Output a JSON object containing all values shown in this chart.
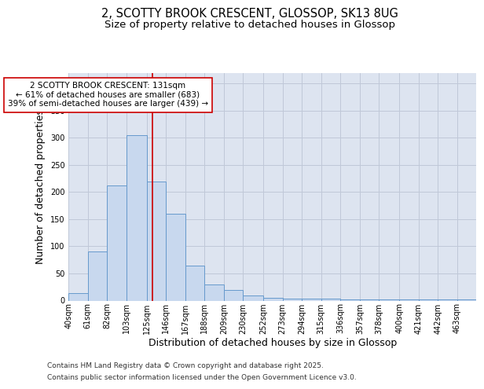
{
  "title_line1": "2, SCOTTY BROOK CRESCENT, GLOSSOP, SK13 8UG",
  "title_line2": "Size of property relative to detached houses in Glossop",
  "xlabel": "Distribution of detached houses by size in Glossop",
  "ylabel": "Number of detached properties",
  "bin_labels": [
    "40sqm",
    "61sqm",
    "82sqm",
    "103sqm",
    "125sqm",
    "146sqm",
    "167sqm",
    "188sqm",
    "209sqm",
    "230sqm",
    "252sqm",
    "273sqm",
    "294sqm",
    "315sqm",
    "336sqm",
    "357sqm",
    "378sqm",
    "400sqm",
    "421sqm",
    "442sqm",
    "463sqm"
  ],
  "bin_edges": [
    40,
    61,
    82,
    103,
    125,
    146,
    167,
    188,
    209,
    230,
    252,
    273,
    294,
    315,
    336,
    357,
    378,
    400,
    421,
    442,
    463,
    484
  ],
  "bar_heights": [
    14,
    90,
    212,
    305,
    220,
    160,
    65,
    30,
    19,
    10,
    5,
    4,
    4,
    3,
    2,
    2,
    2,
    2,
    2,
    2,
    2
  ],
  "bar_color": "#c8d8ee",
  "bar_edge_color": "#6699cc",
  "grid_color": "#c0c8d8",
  "plot_bg_color": "#dde4f0",
  "fig_bg_color": "#ffffff",
  "vline_x": 131,
  "vline_color": "#cc0000",
  "annotation_text": "2 SCOTTY BROOK CRESCENT: 131sqm\n← 61% of detached houses are smaller (683)\n39% of semi-detached houses are larger (439) →",
  "annotation_box_color": "#cc0000",
  "annotation_bg": "#ffffff",
  "ylim": [
    0,
    420
  ],
  "yticks": [
    0,
    50,
    100,
    150,
    200,
    250,
    300,
    350,
    400
  ],
  "footer_line1": "Contains HM Land Registry data © Crown copyright and database right 2025.",
  "footer_line2": "Contains public sector information licensed under the Open Government Licence v3.0.",
  "title_fontsize": 10.5,
  "subtitle_fontsize": 9.5,
  "label_fontsize": 9,
  "tick_fontsize": 7,
  "annot_fontsize": 7.5,
  "footer_fontsize": 6.5
}
